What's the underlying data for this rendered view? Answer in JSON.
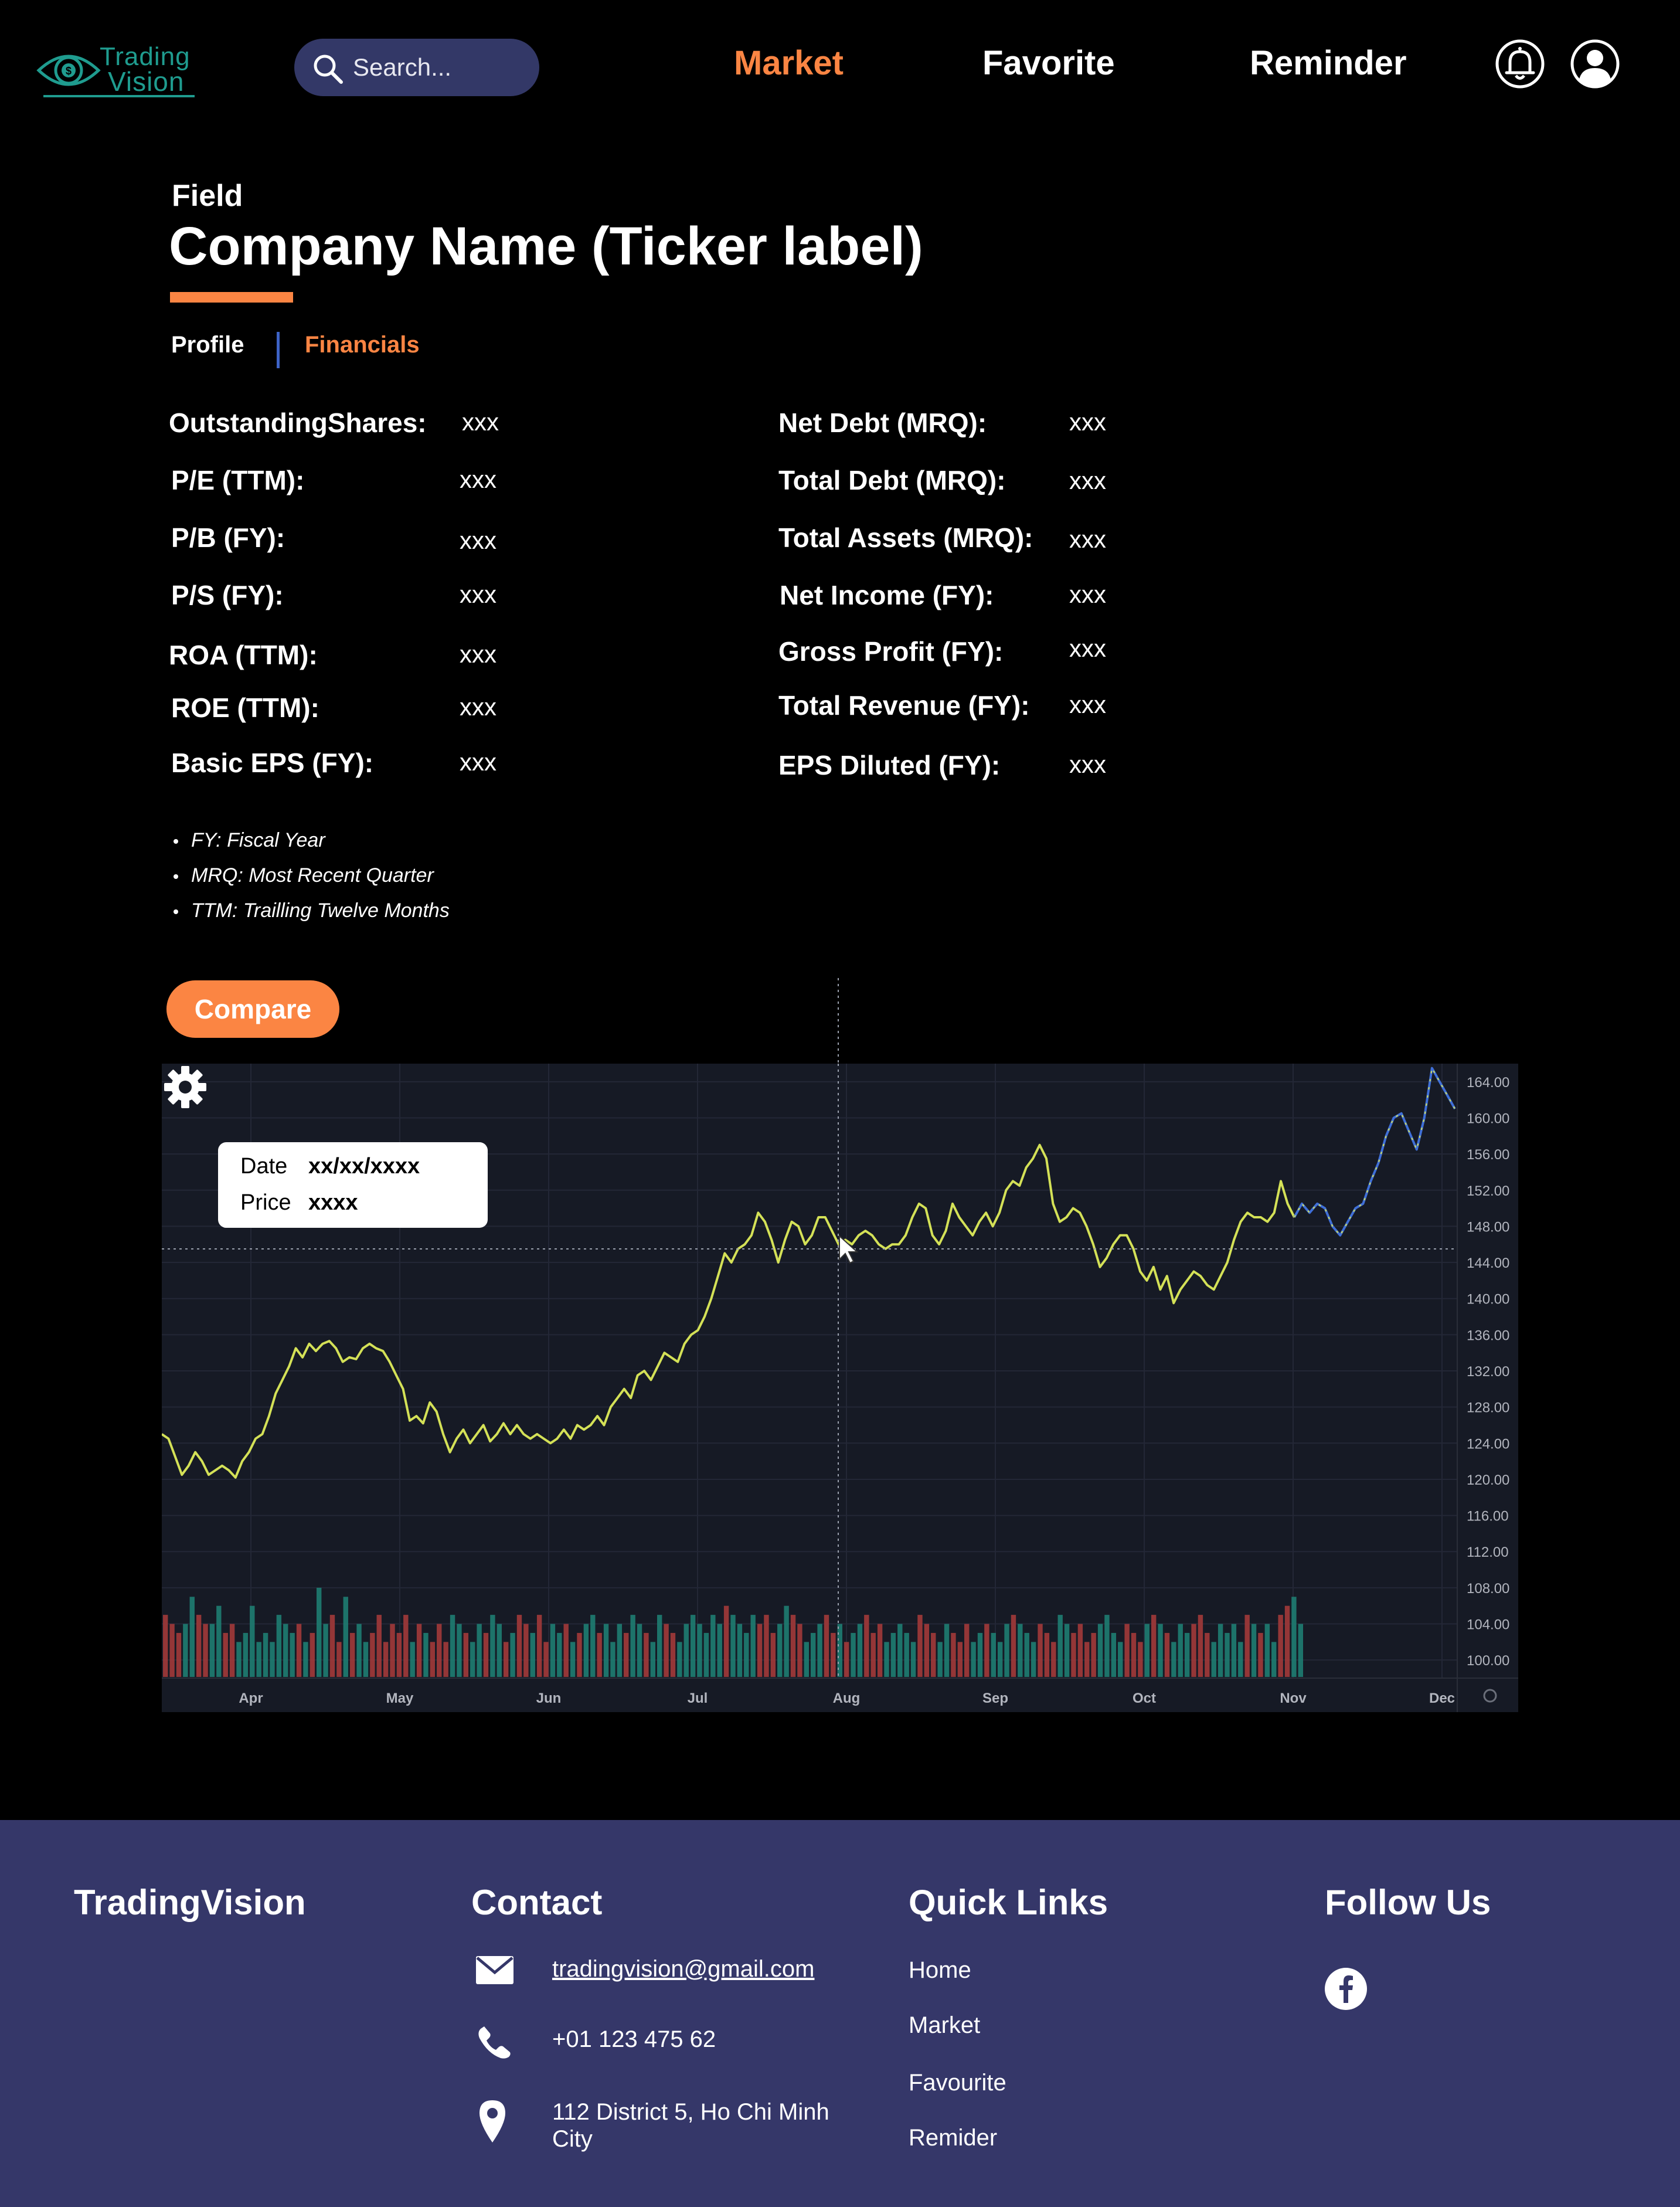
{
  "header": {
    "logo_line1": "Trading",
    "logo_line2": "Vision",
    "search_placeholder": "Search...",
    "nav": {
      "market": "Market",
      "favorite": "Favorite",
      "reminder": "Reminder"
    },
    "active_nav": "Market",
    "icons": [
      "bell-icon",
      "user-avatar-icon"
    ]
  },
  "page": {
    "field": "Field",
    "company": "Company Name (Ticker label)",
    "tabs": {
      "profile": "Profile",
      "financials": "Financials"
    },
    "active_tab": "Financials"
  },
  "financials": {
    "left": [
      {
        "label": "OutstandingShares:",
        "value": "xxx"
      },
      {
        "label": "P/E (TTM):",
        "value": "xxx"
      },
      {
        "label": "P/B (FY):",
        "value": "xxx"
      },
      {
        "label": "P/S (FY):",
        "value": "xxx"
      },
      {
        "label": "ROA (TTM):",
        "value": "xxx"
      },
      {
        "label": "ROE (TTM):",
        "value": "xxx"
      },
      {
        "label": "Basic EPS (FY):",
        "value": "xxx"
      }
    ],
    "right": [
      {
        "label": "Net Debt (MRQ):",
        "value": "xxx"
      },
      {
        "label": "Total Debt (MRQ):",
        "value": "xxx"
      },
      {
        "label": "Total Assets (MRQ):",
        "value": "xxx"
      },
      {
        "label": "Net Income (FY):",
        "value": "xxx"
      },
      {
        "label": "Gross Profit (FY):",
        "value": "xxx"
      },
      {
        "label": "Total Revenue (FY):",
        "value": "xxx"
      },
      {
        "label": "EPS Diluted (FY):",
        "value": "xxx"
      }
    ],
    "notes": [
      "FY: Fiscal Year",
      "MRQ: Most Recent Quarter",
      "TTM: Trailling Twelve Months"
    ]
  },
  "compare_label": "Compare",
  "tooltip": {
    "date_label": "Date",
    "date_value": "xx/xx/xxxx",
    "price_label": "Price",
    "price_value": "xxxx"
  },
  "colors": {
    "accent": "#fb8543",
    "footer_bg": "#353769",
    "chart_bg": "#161a25",
    "price_line": "#d4e157",
    "forecast_line": "#3f6fd8",
    "volume_up": "#1e7d72",
    "volume_down": "#a23a3a"
  },
  "chart_data": {
    "type": "line",
    "x_ticks": [
      "Apr",
      "May",
      "Jun",
      "Jul",
      "Aug",
      "Sep",
      "Oct",
      "Nov",
      "Dec"
    ],
    "y_ticks": [
      "100.00",
      "104.00",
      "108.00",
      "112.00",
      "116.00",
      "120.00",
      "124.00",
      "128.00",
      "132.00",
      "136.00",
      "140.00",
      "144.00",
      "148.00",
      "152.00",
      "156.00",
      "160.00",
      "164.00"
    ],
    "ylim": [
      98,
      166
    ],
    "grid": true,
    "price": [
      125,
      124.5,
      122.5,
      120.5,
      121.5,
      123,
      122,
      120.5,
      121,
      121.5,
      121,
      120.2,
      122,
      123,
      124.5,
      125,
      127,
      129.5,
      131,
      132.5,
      134.5,
      133.5,
      135,
      134.2,
      135,
      135.3,
      134.5,
      133,
      133.5,
      133.3,
      134.5,
      135,
      134.5,
      134.2,
      133,
      131.5,
      130,
      126.5,
      127,
      126.2,
      128.5,
      127.5,
      125,
      123,
      124.5,
      125.5,
      124,
      125,
      126,
      124.2,
      125,
      126.2,
      125,
      126,
      125,
      124.5,
      125,
      124.5,
      124,
      124.5,
      125.5,
      124.5,
      126,
      125.5,
      126,
      127,
      126,
      128,
      129,
      130,
      129,
      131.5,
      132,
      131,
      132.5,
      134,
      133.5,
      133,
      135,
      136,
      136.5,
      138,
      140,
      142.5,
      145,
      144,
      145.5,
      146,
      147,
      149.5,
      148.5,
      146.5,
      144,
      146.5,
      148.5,
      148,
      146,
      147,
      149,
      149,
      147.5,
      146,
      146.5,
      146,
      147,
      147.5,
      147,
      146,
      145.5,
      146,
      146,
      147,
      149,
      150.5,
      150,
      147,
      146,
      147.5,
      150.5,
      149,
      148,
      147,
      148.5,
      149.5,
      148,
      149.5,
      152,
      153,
      152.5,
      154.5,
      155.5,
      157,
      155.5,
      150.5,
      148.5,
      149,
      150,
      149.5,
      148,
      146,
      143.5,
      144.5,
      146,
      147,
      147,
      145.5,
      143,
      142,
      143.5,
      141,
      142.5,
      139.5,
      141,
      142,
      143,
      142.5,
      141.5,
      141,
      142.5,
      144,
      146.5,
      148.5,
      149.5,
      149,
      149,
      148.5,
      149.5,
      153,
      150.5,
      149
    ],
    "forecast": [
      149,
      150.5,
      149.5,
      150.5,
      150,
      148,
      147,
      148.5,
      150,
      150.5,
      153,
      155,
      158,
      160,
      160.5,
      158.5,
      156.5,
      160,
      165.5,
      164,
      162.5,
      161
    ],
    "volume": [
      105,
      104,
      103,
      104,
      107,
      105,
      104,
      104,
      106,
      103,
      104,
      102,
      103,
      106,
      102,
      103,
      102,
      105,
      104,
      103,
      104,
      102,
      103,
      108,
      104,
      105,
      102,
      107,
      103,
      104,
      102,
      103,
      105,
      102,
      104,
      103,
      105,
      102,
      104,
      103,
      102,
      104,
      102,
      105,
      104,
      103,
      102,
      104,
      103,
      105,
      104,
      102,
      103,
      105,
      104,
      103,
      105,
      102,
      104,
      103,
      104,
      102,
      103,
      104,
      105,
      103,
      104,
      102,
      104,
      103,
      105,
      104,
      103,
      102,
      105,
      104,
      103,
      102,
      104,
      105,
      104,
      103,
      105,
      104,
      106,
      105,
      104,
      103,
      105,
      104,
      105,
      103,
      104,
      106,
      105,
      104,
      102,
      103,
      104,
      105,
      103,
      104,
      102,
      103,
      104,
      105,
      103,
      104,
      102,
      103,
      104,
      103,
      102,
      105,
      104,
      103,
      102,
      104,
      103,
      102,
      104,
      102,
      103,
      104,
      103,
      102,
      104,
      105,
      104,
      103,
      102,
      104,
      103,
      102,
      105,
      104,
      103,
      104,
      102,
      103,
      104,
      105,
      103,
      102,
      104,
      103,
      102,
      104,
      105,
      104,
      103,
      102,
      104,
      103,
      104,
      105,
      103,
      102,
      104,
      103,
      104,
      102,
      105,
      104,
      103,
      104,
      102,
      105,
      106,
      107,
      104
    ]
  },
  "footer": {
    "brand": "TradingVision",
    "contact_title": "Contact",
    "email": "tradingvision@gmail.com",
    "phone": "+01 123 475 62",
    "address_line1": "112 District 5, Ho Chi Minh",
    "address_line2": "City",
    "quick_links_title": "Quick Links",
    "links": [
      "Home",
      "Market",
      "Favourite",
      "Remider"
    ],
    "follow_title": "Follow Us"
  }
}
